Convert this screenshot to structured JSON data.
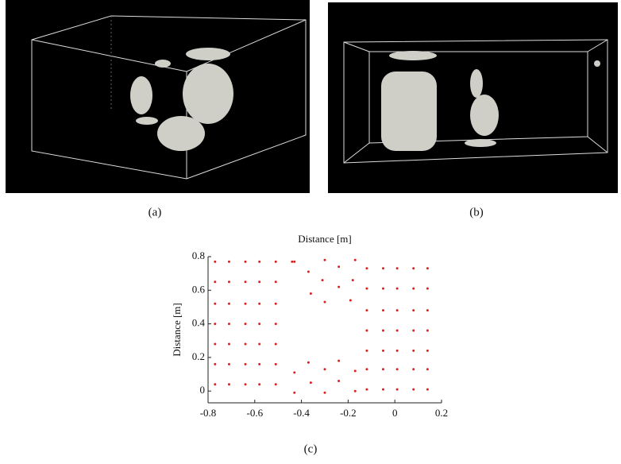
{
  "captions": [
    "(a)",
    "(b)",
    "(c)"
  ],
  "chart_data": {
    "type": "scatter",
    "title": "Distance [m]",
    "y_label": "Distance [m]",
    "color": "#e02020",
    "xlim": [
      -0.8,
      0.2
    ],
    "xticks": [
      -0.8,
      -0.6,
      -0.4,
      -0.2,
      0,
      0.2
    ],
    "ylim": [
      -0.07,
      0.8
    ],
    "yticks": [
      0,
      0.2,
      0.4,
      0.6,
      0.8
    ],
    "x": [
      -0.77,
      -0.71,
      -0.64,
      -0.58,
      -0.51,
      -0.77,
      -0.71,
      -0.64,
      -0.58,
      -0.51,
      -0.77,
      -0.71,
      -0.64,
      -0.58,
      -0.51,
      -0.77,
      -0.71,
      -0.64,
      -0.58,
      -0.51,
      -0.77,
      -0.71,
      -0.64,
      -0.58,
      -0.51,
      -0.77,
      -0.71,
      -0.64,
      -0.58,
      -0.51,
      -0.77,
      -0.71,
      -0.64,
      -0.58,
      -0.51,
      -0.44,
      -0.43,
      -0.37,
      -0.3,
      -0.24,
      -0.17,
      -0.36,
      -0.31,
      -0.24,
      -0.18,
      -0.3,
      -0.19,
      -0.43,
      -0.37,
      -0.3,
      -0.24,
      -0.17,
      -0.43,
      -0.36,
      -0.3,
      -0.24,
      -0.17,
      -0.12,
      -0.05,
      0.01,
      0.08,
      0.14,
      -0.12,
      -0.05,
      0.01,
      0.08,
      0.14,
      -0.12,
      -0.05,
      0.01,
      0.08,
      0.14,
      -0.12,
      -0.05,
      0.01,
      0.08,
      0.14,
      -0.12,
      -0.05,
      0.01,
      0.08,
      0.14,
      -0.12,
      -0.05,
      0.01,
      0.08,
      0.14,
      -0.12,
      -0.05,
      0.01,
      0.08,
      0.14
    ],
    "y": [
      0.77,
      0.77,
      0.77,
      0.77,
      0.77,
      0.65,
      0.65,
      0.65,
      0.65,
      0.65,
      0.52,
      0.52,
      0.52,
      0.52,
      0.52,
      0.4,
      0.4,
      0.4,
      0.4,
      0.4,
      0.28,
      0.28,
      0.28,
      0.28,
      0.28,
      0.16,
      0.16,
      0.16,
      0.16,
      0.16,
      0.04,
      0.04,
      0.04,
      0.04,
      0.04,
      0.77,
      0.77,
      0.71,
      0.78,
      0.74,
      0.78,
      0.58,
      0.66,
      0.62,
      0.66,
      0.53,
      0.54,
      0.11,
      0.17,
      0.13,
      0.18,
      0.12,
      -0.01,
      0.05,
      -0.01,
      0.06,
      0.0,
      0.73,
      0.73,
      0.73,
      0.73,
      0.73,
      0.61,
      0.61,
      0.61,
      0.61,
      0.61,
      0.48,
      0.48,
      0.48,
      0.48,
      0.48,
      0.36,
      0.36,
      0.36,
      0.36,
      0.36,
      0.24,
      0.24,
      0.24,
      0.24,
      0.24,
      0.13,
      0.13,
      0.13,
      0.13,
      0.13,
      0.01,
      0.01,
      0.01,
      0.01,
      0.01
    ]
  }
}
